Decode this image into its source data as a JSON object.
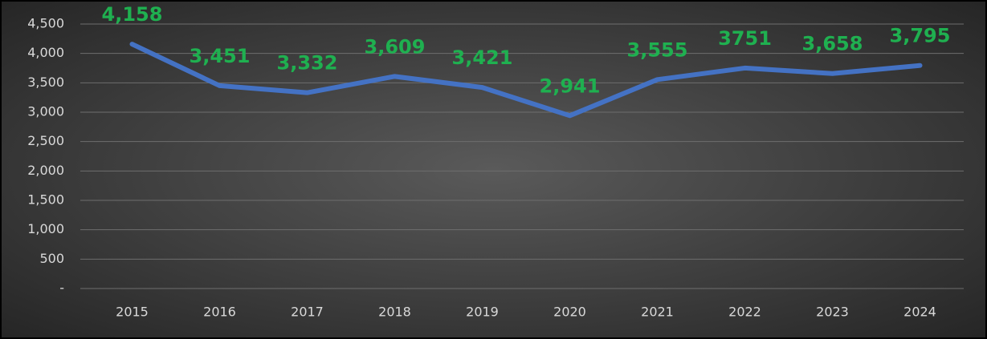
{
  "chart_data": {
    "type": "line",
    "categories": [
      "2015",
      "2016",
      "2017",
      "2018",
      "2019",
      "2020",
      "2021",
      "2022",
      "2023",
      "2024"
    ],
    "series": [
      {
        "color": "#4472c4",
        "values": [
          4158,
          3451,
          3332,
          3609,
          3421,
          2941,
          3555,
          3751,
          3658,
          3795
        ],
        "value_labels": [
          "4,158",
          "3,451",
          "3,332",
          "3,609",
          "3,421",
          "2,941",
          "3,555",
          "3751",
          "3,658",
          "3,795"
        ],
        "label_color": "#1fb050"
      }
    ],
    "ylim": [
      0,
      4500
    ],
    "yticks": [
      {
        "value": 0,
        "label": "-"
      },
      500,
      {
        "value": 1000,
        "label": "1,000"
      },
      {
        "value": 1500,
        "label": "1,500"
      },
      {
        "value": 2000,
        "label": "2,000"
      },
      {
        "value": 2500,
        "label": "2,500"
      },
      {
        "value": 3000,
        "label": "3,000"
      },
      {
        "value": 3500,
        "label": "3,500"
      },
      {
        "value": 4000,
        "label": "4,000"
      },
      {
        "value": 4500,
        "label": "4,500"
      }
    ],
    "grid": true
  }
}
